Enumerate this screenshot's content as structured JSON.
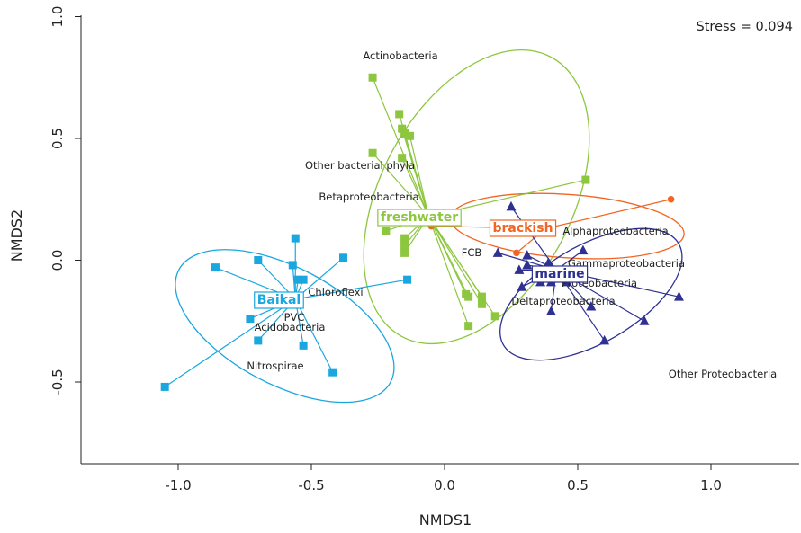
{
  "chart_data": {
    "type": "scatter",
    "xlabel": "NMDS1",
    "ylabel": "NMDS2",
    "xlim": [
      -1.35,
      1.35
    ],
    "ylim": [
      -0.83,
      1.0
    ],
    "xticks": [
      -1.0,
      -0.5,
      0.0,
      0.5,
      1.0
    ],
    "yticks": [
      -0.5,
      0.0,
      0.5,
      1.0
    ],
    "xtick_labels": [
      "-1.0",
      "-0.5",
      "0.0",
      "0.5",
      "1.0"
    ],
    "ytick_labels": [
      "-0.5",
      "0.0",
      "0.5",
      "1.0"
    ],
    "grid": false,
    "annotation": "Stress = 0.094",
    "groups": [
      {
        "name": "Baikal",
        "color": "#1aa7e0",
        "marker": "square",
        "centroid": [
          -0.56,
          -0.16
        ],
        "ellipse": {
          "center": [
            -0.6,
            -0.27
          ],
          "rx": 0.45,
          "ry": 0.24,
          "angle_deg": 28
        },
        "points": [
          [
            -1.05,
            -0.52
          ],
          [
            -0.86,
            -0.03
          ],
          [
            -0.7,
            0.0
          ],
          [
            -0.73,
            -0.24
          ],
          [
            -0.7,
            -0.33
          ],
          [
            -0.56,
            0.09
          ],
          [
            -0.57,
            -0.02
          ],
          [
            -0.55,
            -0.08
          ],
          [
            -0.53,
            -0.08
          ],
          [
            -0.38,
            0.01
          ],
          [
            -0.53,
            -0.35
          ],
          [
            -0.42,
            -0.46
          ],
          [
            -0.14,
            -0.08
          ]
        ]
      },
      {
        "name": "freshwater",
        "color": "#8dc63f",
        "marker": "square",
        "centroid": [
          -0.06,
          0.18
        ],
        "ellipse": {
          "center": [
            0.12,
            0.26
          ],
          "rx": 0.36,
          "ry": 0.65,
          "angle_deg": 28
        },
        "points": [
          [
            -0.27,
            0.75
          ],
          [
            -0.17,
            0.6
          ],
          [
            -0.16,
            0.54
          ],
          [
            -0.15,
            0.52
          ],
          [
            -0.13,
            0.51
          ],
          [
            -0.16,
            0.42
          ],
          [
            -0.27,
            0.44
          ],
          [
            -0.22,
            0.12
          ],
          [
            -0.15,
            0.09
          ],
          [
            -0.15,
            0.06
          ],
          [
            -0.15,
            0.03
          ],
          [
            0.53,
            0.33
          ],
          [
            0.08,
            -0.14
          ],
          [
            0.09,
            -0.15
          ],
          [
            0.14,
            -0.18
          ],
          [
            0.14,
            -0.15
          ],
          [
            0.19,
            -0.23
          ],
          [
            0.09,
            -0.27
          ]
        ]
      },
      {
        "name": "brackish",
        "color": "#f26522",
        "marker": "circle",
        "centroid": [
          0.38,
          0.13
        ],
        "ellipse": {
          "center": [
            0.46,
            0.14
          ],
          "rx": 0.44,
          "ry": 0.13,
          "angle_deg": 4
        },
        "points": [
          [
            -0.05,
            0.14
          ],
          [
            0.27,
            0.03
          ],
          [
            0.85,
            0.25
          ]
        ]
      },
      {
        "name": "marine",
        "color": "#2e3192",
        "marker": "triangle",
        "centroid": [
          0.42,
          -0.04
        ],
        "ellipse": {
          "center": [
            0.55,
            -0.14
          ],
          "rx": 0.38,
          "ry": 0.2,
          "angle_deg": -30
        },
        "points": [
          [
            0.25,
            0.22
          ],
          [
            0.2,
            0.03
          ],
          [
            0.31,
            0.02
          ],
          [
            0.28,
            -0.04
          ],
          [
            0.31,
            -0.02
          ],
          [
            0.39,
            -0.01
          ],
          [
            0.52,
            0.04
          ],
          [
            0.29,
            -0.11
          ],
          [
            0.36,
            -0.09
          ],
          [
            0.4,
            -0.09
          ],
          [
            0.46,
            -0.09
          ],
          [
            0.55,
            -0.19
          ],
          [
            0.4,
            -0.21
          ],
          [
            0.6,
            -0.33
          ],
          [
            0.75,
            -0.25
          ],
          [
            0.88,
            -0.15
          ]
        ]
      }
    ],
    "group_labels": [
      "freshwater",
      "brackish",
      "marine",
      "Baikal"
    ],
    "taxon_labels": [
      "Actinobacteria",
      "Other bacterial phyla",
      "Betaproteobacteria",
      "FCB",
      "Alphaproteobacteria",
      "Gammaproteobacteria",
      "Proteobacteria",
      "Deltaproteobacteria",
      "Other Proteobacteria",
      "Chloroflexi",
      "PVC",
      "Acidobacteria",
      "Nitrospirae"
    ]
  }
}
